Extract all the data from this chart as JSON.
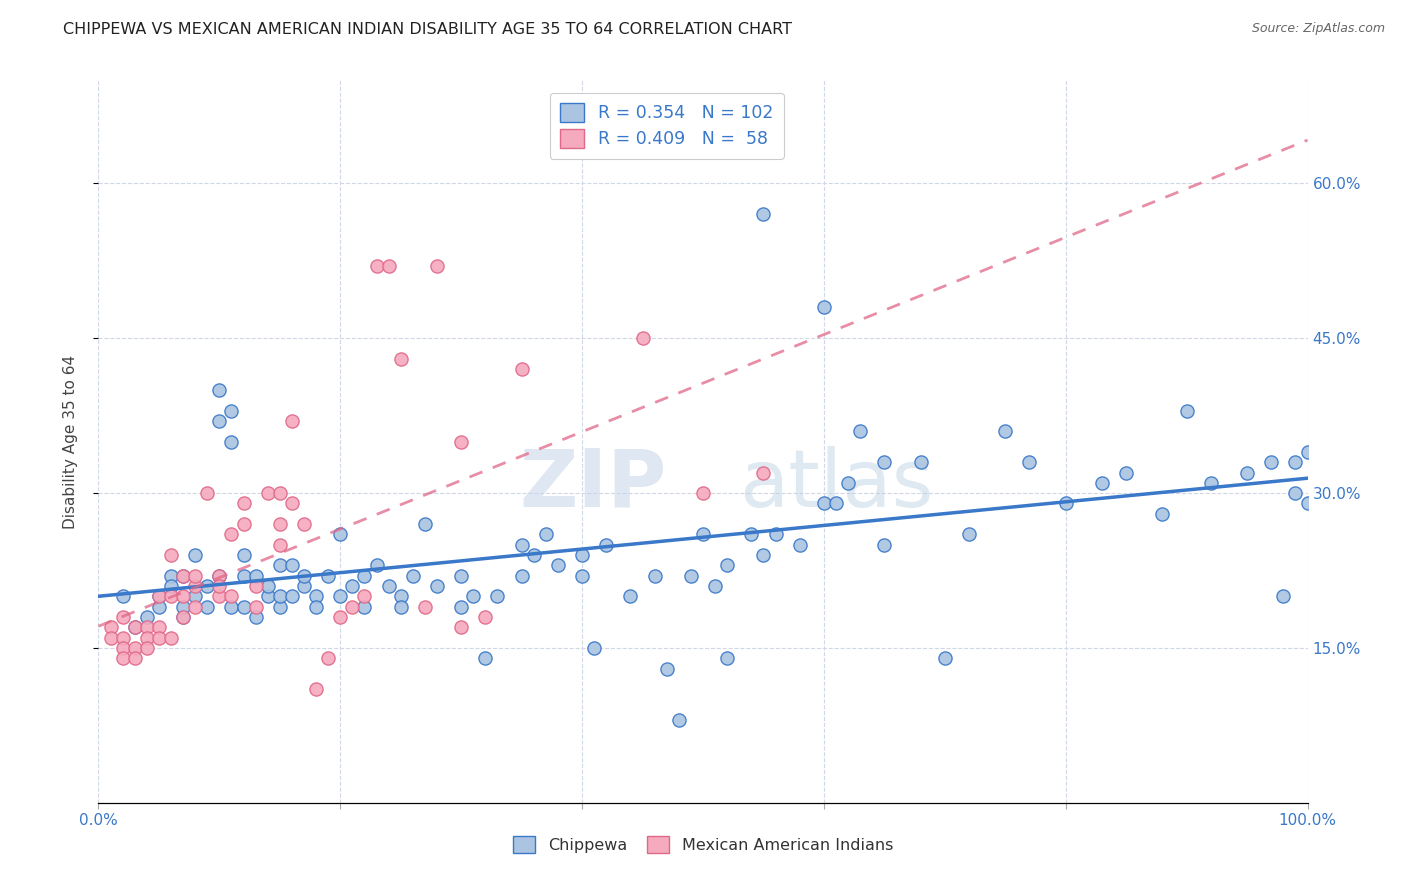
{
  "title": "CHIPPEWA VS MEXICAN AMERICAN INDIAN DISABILITY AGE 35 TO 64 CORRELATION CHART",
  "source": "Source: ZipAtlas.com",
  "ylabel": "Disability Age 35 to 64",
  "xlim": [
    0,
    1.0
  ],
  "ylim": [
    0.0,
    0.7
  ],
  "chippewa_color": "#aac4e2",
  "mexican_color": "#f5aabe",
  "line_chippewa_color": "#3a78c9",
  "line_mexican_color": "#e06888",
  "background_color": "#ffffff",
  "grid_color": "#d0d8e8",
  "legend_R1": "0.354",
  "legend_N1": "102",
  "legend_R2": "0.409",
  "legend_N2": " 58",
  "watermark_zip": "ZIP",
  "watermark_atlas": "atlas",
  "title_fontsize": 11.5,
  "axis_label_fontsize": 11,
  "tick_fontsize": 11,
  "chippewa_x": [
    0.02,
    0.03,
    0.04,
    0.05,
    0.05,
    0.06,
    0.06,
    0.07,
    0.07,
    0.07,
    0.08,
    0.08,
    0.09,
    0.09,
    0.1,
    0.1,
    0.1,
    0.11,
    0.11,
    0.11,
    0.12,
    0.12,
    0.12,
    0.13,
    0.13,
    0.14,
    0.14,
    0.15,
    0.15,
    0.15,
    0.16,
    0.16,
    0.17,
    0.17,
    0.18,
    0.18,
    0.19,
    0.2,
    0.2,
    0.21,
    0.22,
    0.22,
    0.23,
    0.24,
    0.25,
    0.25,
    0.26,
    0.27,
    0.28,
    0.3,
    0.3,
    0.31,
    0.32,
    0.33,
    0.35,
    0.35,
    0.36,
    0.37,
    0.38,
    0.4,
    0.4,
    0.41,
    0.42,
    0.44,
    0.46,
    0.47,
    0.48,
    0.49,
    0.5,
    0.51,
    0.52,
    0.52,
    0.54,
    0.55,
    0.56,
    0.58,
    0.6,
    0.61,
    0.62,
    0.63,
    0.65,
    0.65,
    0.68,
    0.7,
    0.72,
    0.75,
    0.77,
    0.8,
    0.83,
    0.85,
    0.88,
    0.9,
    0.92,
    0.95,
    0.97,
    0.98,
    0.99,
    0.99,
    1.0,
    1.0,
    0.55,
    0.6
  ],
  "chippewa_y": [
    0.2,
    0.17,
    0.18,
    0.2,
    0.19,
    0.22,
    0.21,
    0.18,
    0.22,
    0.19,
    0.2,
    0.24,
    0.21,
    0.19,
    0.4,
    0.37,
    0.22,
    0.19,
    0.38,
    0.35,
    0.24,
    0.22,
    0.19,
    0.22,
    0.18,
    0.2,
    0.21,
    0.23,
    0.19,
    0.2,
    0.23,
    0.2,
    0.21,
    0.22,
    0.2,
    0.19,
    0.22,
    0.26,
    0.2,
    0.21,
    0.22,
    0.19,
    0.23,
    0.21,
    0.2,
    0.19,
    0.22,
    0.27,
    0.21,
    0.22,
    0.19,
    0.2,
    0.14,
    0.2,
    0.25,
    0.22,
    0.24,
    0.26,
    0.23,
    0.24,
    0.22,
    0.15,
    0.25,
    0.2,
    0.22,
    0.13,
    0.08,
    0.22,
    0.26,
    0.21,
    0.23,
    0.14,
    0.26,
    0.24,
    0.26,
    0.25,
    0.29,
    0.29,
    0.31,
    0.36,
    0.33,
    0.25,
    0.33,
    0.14,
    0.26,
    0.36,
    0.33,
    0.29,
    0.31,
    0.32,
    0.28,
    0.38,
    0.31,
    0.32,
    0.33,
    0.2,
    0.3,
    0.33,
    0.29,
    0.34,
    0.57,
    0.48
  ],
  "mexican_x": [
    0.01,
    0.01,
    0.02,
    0.02,
    0.02,
    0.02,
    0.03,
    0.03,
    0.03,
    0.04,
    0.04,
    0.04,
    0.05,
    0.05,
    0.05,
    0.06,
    0.06,
    0.06,
    0.07,
    0.07,
    0.07,
    0.08,
    0.08,
    0.08,
    0.09,
    0.1,
    0.1,
    0.1,
    0.11,
    0.11,
    0.12,
    0.12,
    0.13,
    0.13,
    0.14,
    0.15,
    0.15,
    0.15,
    0.16,
    0.16,
    0.17,
    0.18,
    0.19,
    0.2,
    0.21,
    0.22,
    0.23,
    0.24,
    0.25,
    0.27,
    0.28,
    0.3,
    0.3,
    0.32,
    0.35,
    0.45,
    0.5,
    0.55
  ],
  "mexican_y": [
    0.17,
    0.16,
    0.18,
    0.16,
    0.15,
    0.14,
    0.17,
    0.15,
    0.14,
    0.17,
    0.16,
    0.15,
    0.2,
    0.17,
    0.16,
    0.24,
    0.2,
    0.16,
    0.22,
    0.2,
    0.18,
    0.21,
    0.22,
    0.19,
    0.3,
    0.22,
    0.2,
    0.21,
    0.26,
    0.2,
    0.29,
    0.27,
    0.21,
    0.19,
    0.3,
    0.3,
    0.27,
    0.25,
    0.37,
    0.29,
    0.27,
    0.11,
    0.14,
    0.18,
    0.19,
    0.2,
    0.52,
    0.52,
    0.43,
    0.19,
    0.52,
    0.17,
    0.35,
    0.18,
    0.42,
    0.45,
    0.3,
    0.32
  ]
}
